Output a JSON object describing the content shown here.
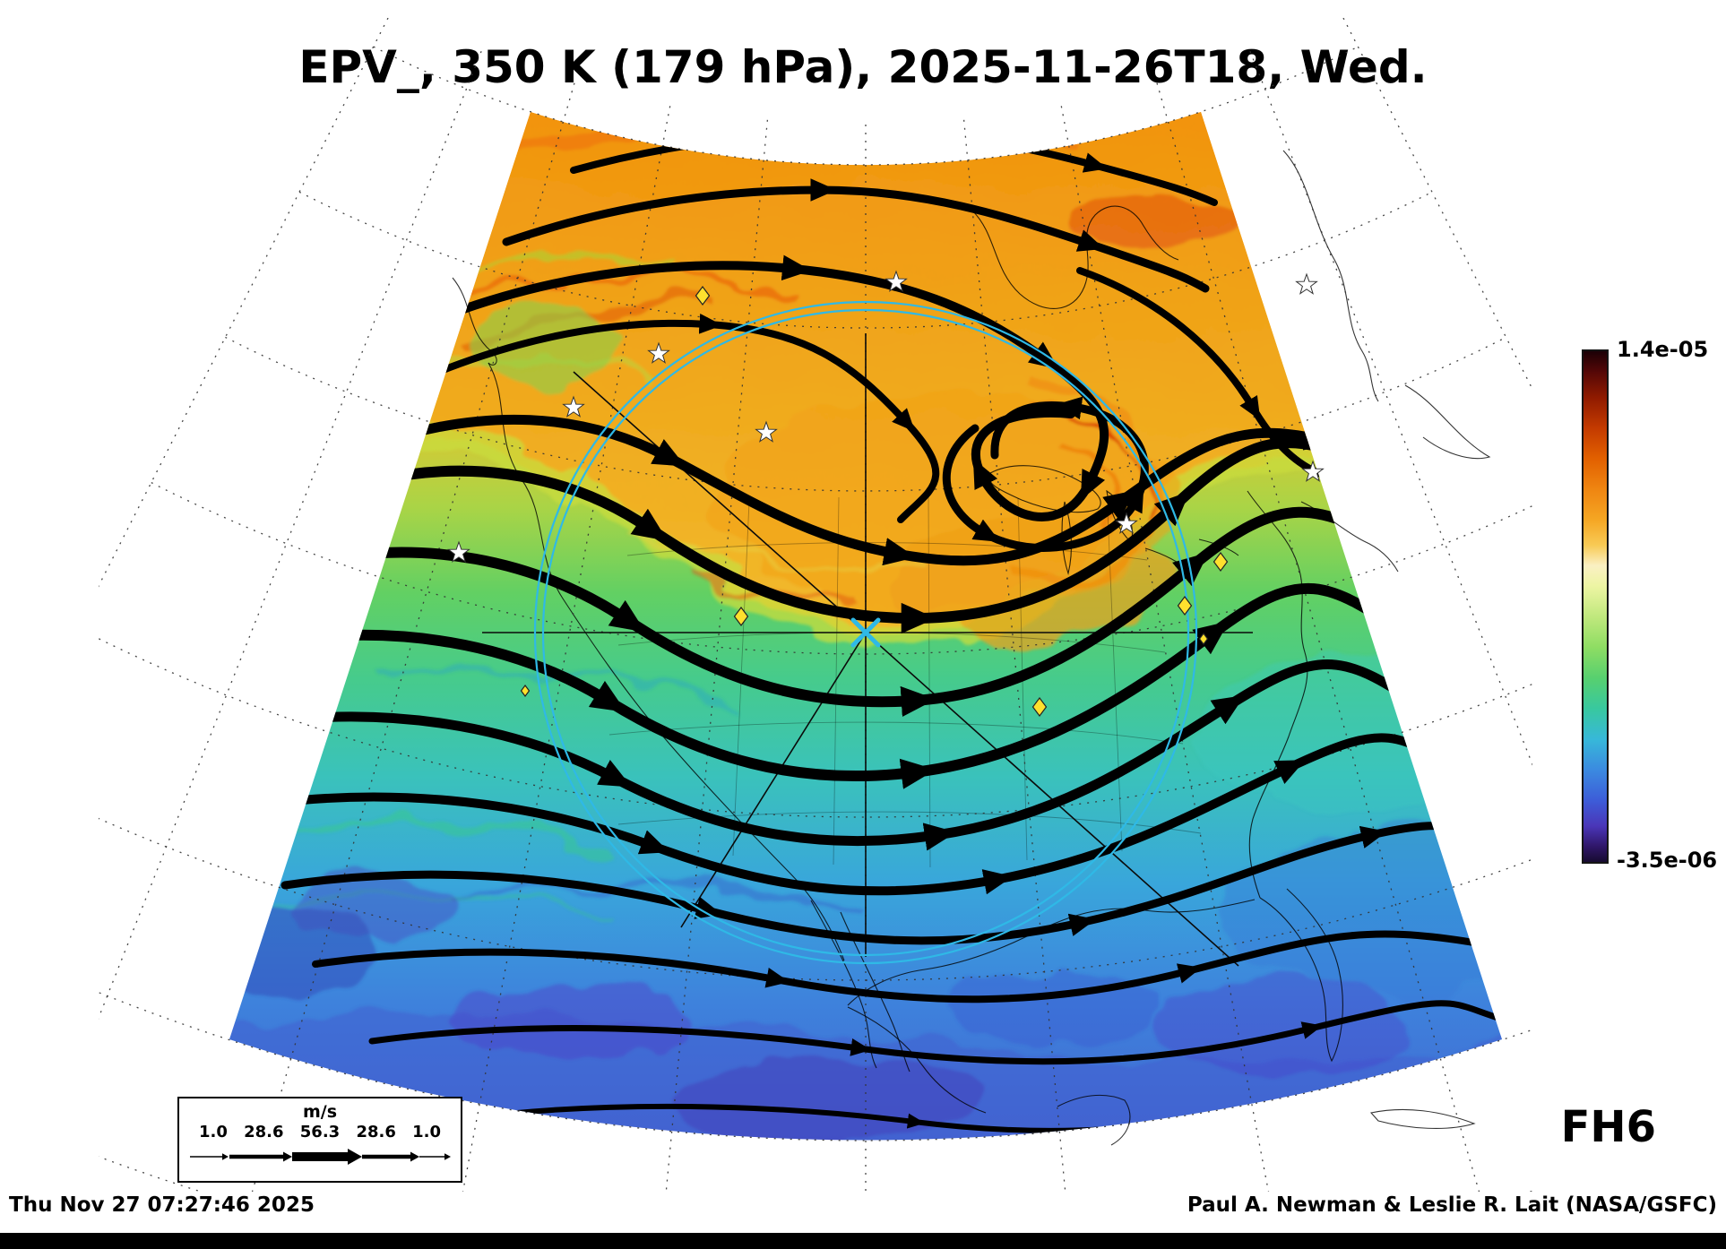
{
  "title": "EPV_, 350 K (179 hPa), 2025-11-26T18, Wed.",
  "frame_label": "FH6",
  "footer": {
    "timestamp": "Thu Nov 27 07:27:46 2025",
    "credit": "Paul A. Newman & Leslie R. Lait (NASA/GSFC)"
  },
  "colorbar": {
    "max_label": "1.4e-05",
    "min_label": "-3.5e-06",
    "gradient_stops": [
      "#1c0006 0%",
      "#540707 4%",
      "#8f1a00 9%",
      "#c33a00 15%",
      "#e26000 21%",
      "#ef8511 27%",
      "#f5a623 33%",
      "#f8ca55 38%",
      "#faf0c3 42%",
      "#edf5a3 46%",
      "#c0e87d 52%",
      "#8edd63 58%",
      "#57d06f 64%",
      "#38c89f 70%",
      "#37b8d9 76%",
      "#3b8ae0 82%",
      "#3d5cd8 88%",
      "#4a36b8 93%",
      "#2f1668 97%",
      "#170b30 100%"
    ]
  },
  "wind_legend": {
    "units": "m/s",
    "values": [
      "1.0",
      "28.6",
      "56.3",
      "28.6",
      "1.0"
    ]
  },
  "chart_data": {
    "type": "heatmap",
    "title": "EPV_, 350 K (179 hPa), 2025-11-26T18, Wed.",
    "variable": "EPV_ (Ertel potential vorticity)",
    "level": "350 K (179 hPa)",
    "valid_time": "2025-11-26T18 (Wed.)",
    "forecast_hour_label": "FH6",
    "colorbar": {
      "min": -3.5e-06,
      "max": 1.4e-05,
      "min_label": "-3.5e-06",
      "max_label": "1.4e-05"
    },
    "wind_speed_scale_mps": [
      1.0,
      28.6,
      56.3,
      28.6,
      1.0
    ],
    "region": "North America, polar stereographic sector",
    "overlays": [
      "black wind streamlines with arrowheads (thickness ~ speed)",
      "dotted latitude-longitude graticule",
      "coastlines and state borders",
      "cyan range circle with cyan X at center and crosshair lines",
      "station markers: yellow diamonds and white stars"
    ],
    "field_pattern": "high EPV (orange/red) across the north and in a central trough curling around a cyclonic vortex near the Great Lakes; low EPV (green/cyan/blue, purple patches) across the south"
  }
}
